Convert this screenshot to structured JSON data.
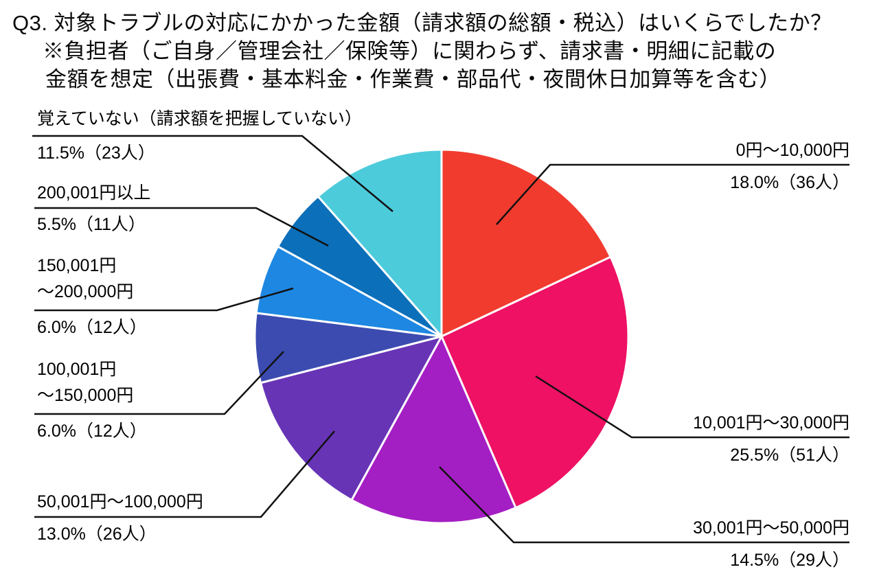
{
  "title": {
    "line1": "Q3. 対象トラブルの対応にかかった金額（請求額の総額・税込）はいくらでしたか？",
    "line2": "※負担者（ご自身／管理会社／保険等）に関わらず、請求書・明細に記載の",
    "line3": "金額を想定（出張費・基本料金・作業費・部品代・夜間休日加算等を含む）"
  },
  "chart_data": {
    "type": "pie",
    "title": "Q3. 対象トラブルの対応にかかった金額（請求額の総額・税込）はいくらでしたか？",
    "direction": "clockwise",
    "start_angle_deg": 0,
    "legend_position": "outside-callouts",
    "slices": [
      {
        "label": "0円～10,000円",
        "percent": 18.0,
        "count": 36,
        "pct_label": "18.0%（36人）",
        "color": "#F13B2F"
      },
      {
        "label": "10,001円～30,000円",
        "percent": 25.5,
        "count": 51,
        "pct_label": "25.5%（51人）",
        "color": "#EE1164"
      },
      {
        "label": "30,001円～50,000円",
        "percent": 14.5,
        "count": 29,
        "pct_label": "14.5%（29人）",
        "color": "#A41FC3"
      },
      {
        "label": "50,001円～100,000円",
        "percent": 13.0,
        "count": 26,
        "pct_label": "13.0%（26人）",
        "color": "#6834B6"
      },
      {
        "label": "100,001円～150,000円",
        "percent": 6.0,
        "count": 12,
        "pct_label": "6.0%（12人）",
        "label_lines": [
          "100,001円",
          "～150,000円"
        ],
        "color": "#3C4BB0"
      },
      {
        "label": "150,001円～200,000円",
        "percent": 6.0,
        "count": 12,
        "pct_label": "6.0%（12人）",
        "label_lines": [
          "150,001円",
          "～200,000円"
        ],
        "color": "#1E87E2"
      },
      {
        "label": "200,001円以上",
        "percent": 5.5,
        "count": 11,
        "pct_label": "5.5%（11人）",
        "color": "#0B6FB9"
      },
      {
        "label": "覚えていない（請求額を把握していない）",
        "percent": 11.5,
        "count": 23,
        "pct_label": "11.5%（23人）",
        "color": "#4CCBDB"
      }
    ]
  }
}
